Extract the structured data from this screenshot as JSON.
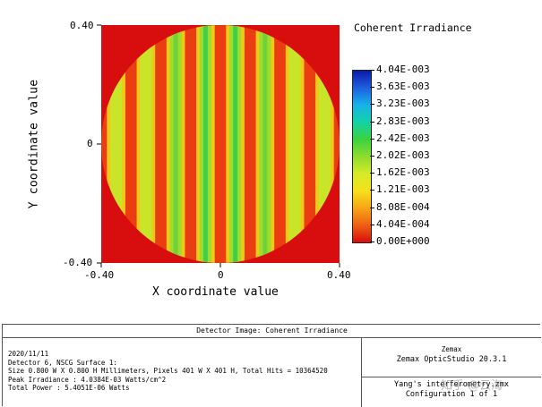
{
  "chart_data": {
    "type": "heatmap",
    "title": "Coherent Irradiance",
    "xlabel": "X coordinate value",
    "ylabel": "Y coordinate value",
    "xlim": [
      -0.4,
      0.4
    ],
    "ylim": [
      -0.4,
      0.4
    ],
    "x_ticks": [
      "-0.40",
      "0",
      "0.40"
    ],
    "y_ticks": [
      "0.40",
      "0",
      "-0.40"
    ],
    "aperture_shape": "circle",
    "aperture_radius": 0.4,
    "fringe_orientation": "vertical",
    "fringe_count": 8,
    "colorscale": {
      "min": 0.0,
      "max": 0.00404,
      "labels": [
        "4.04E-003",
        "3.63E-003",
        "3.23E-003",
        "2.83E-003",
        "2.42E-003",
        "2.02E-003",
        "1.62E-003",
        "1.21E-003",
        "8.08E-004",
        "4.04E-004",
        "0.00E+000"
      ],
      "colors": [
        "#0a1aa8",
        "#1f5fe0",
        "#17b2e8",
        "#14d2a8",
        "#3ad240",
        "#8edc2e",
        "#d6ea28",
        "#f6e11a",
        "#f7a516",
        "#ee6014",
        "#d80d0d"
      ]
    }
  },
  "footer": {
    "title": "Detector Image: Coherent Irradiance",
    "date": "2020/11/11",
    "detector": "Detector 6, NSCG Surface 1:",
    "size": "Size 0.800 W X 0.800 H Millimeters, Pixels 401 W X 401 H, Total Hits = 10364520",
    "peak": "Peak Irradiance : 4.0384E-03 Watts/cm^2",
    "total_power": "Total Power     : 5.4051E-06 Watts",
    "brand": "Zemax",
    "version": "Zemax OpticStudio 20.3.1",
    "file": "Yang's interferometry.zmx",
    "configuration": "Configuration 1 of 1"
  },
  "watermark": "知乎 @云海"
}
